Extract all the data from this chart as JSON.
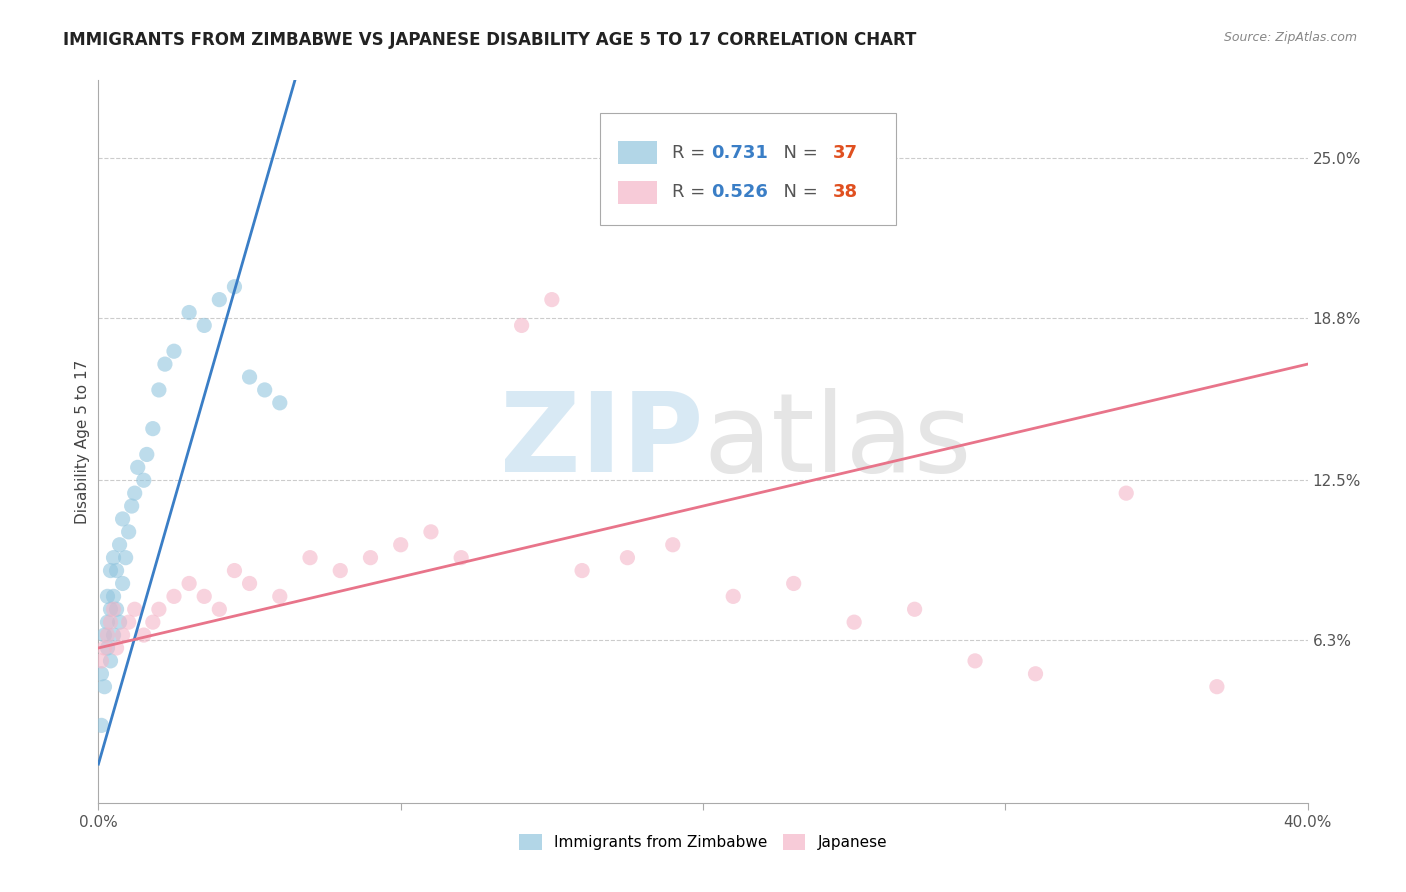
{
  "title": "IMMIGRANTS FROM ZIMBABWE VS JAPANESE DISABILITY AGE 5 TO 17 CORRELATION CHART",
  "source_text": "Source: ZipAtlas.com",
  "ylabel": "Disability Age 5 to 17",
  "xlim": [
    0.0,
    0.4
  ],
  "ylim": [
    0.0,
    0.28
  ],
  "xticks": [
    0.0,
    0.1,
    0.2,
    0.3,
    0.4
  ],
  "xticklabels": [
    "0.0%",
    "",
    "",
    "",
    "40.0%"
  ],
  "yticks_right": [
    0.063,
    0.125,
    0.188,
    0.25
  ],
  "yticklabels_right": [
    "6.3%",
    "12.5%",
    "18.8%",
    "25.0%"
  ],
  "legend_entry1_R": "0.731",
  "legend_entry1_N": "37",
  "legend_entry2_R": "0.526",
  "legend_entry2_N": "38",
  "blue_color": "#92c5de",
  "pink_color": "#f4b6c8",
  "blue_line_color": "#3a7ec6",
  "pink_line_color": "#e8748a",
  "legend_blue_color": "#92c5de",
  "legend_pink_color": "#f4b6c8",
  "label1": "Immigrants from Zimbabwe",
  "label2": "Japanese",
  "watermark_zip_color": "#c8e0f0",
  "watermark_atlas_color": "#d0d0d0",
  "blue_scatter_x": [
    0.001,
    0.001,
    0.002,
    0.002,
    0.003,
    0.003,
    0.003,
    0.004,
    0.004,
    0.004,
    0.005,
    0.005,
    0.005,
    0.006,
    0.006,
    0.007,
    0.007,
    0.008,
    0.008,
    0.009,
    0.01,
    0.011,
    0.012,
    0.013,
    0.015,
    0.016,
    0.018,
    0.02,
    0.022,
    0.025,
    0.03,
    0.035,
    0.04,
    0.045,
    0.05,
    0.055,
    0.06
  ],
  "blue_scatter_y": [
    0.03,
    0.05,
    0.045,
    0.065,
    0.06,
    0.07,
    0.08,
    0.055,
    0.075,
    0.09,
    0.065,
    0.08,
    0.095,
    0.075,
    0.09,
    0.07,
    0.1,
    0.085,
    0.11,
    0.095,
    0.105,
    0.115,
    0.12,
    0.13,
    0.125,
    0.135,
    0.145,
    0.16,
    0.17,
    0.175,
    0.19,
    0.185,
    0.195,
    0.2,
    0.165,
    0.16,
    0.155
  ],
  "pink_scatter_x": [
    0.001,
    0.002,
    0.003,
    0.004,
    0.005,
    0.006,
    0.008,
    0.01,
    0.012,
    0.015,
    0.018,
    0.02,
    0.025,
    0.03,
    0.035,
    0.04,
    0.045,
    0.05,
    0.06,
    0.07,
    0.08,
    0.09,
    0.1,
    0.11,
    0.12,
    0.14,
    0.15,
    0.16,
    0.175,
    0.19,
    0.21,
    0.23,
    0.25,
    0.27,
    0.29,
    0.31,
    0.34,
    0.37
  ],
  "pink_scatter_y": [
    0.055,
    0.06,
    0.065,
    0.07,
    0.075,
    0.06,
    0.065,
    0.07,
    0.075,
    0.065,
    0.07,
    0.075,
    0.08,
    0.085,
    0.08,
    0.075,
    0.09,
    0.085,
    0.08,
    0.095,
    0.09,
    0.095,
    0.1,
    0.105,
    0.095,
    0.185,
    0.195,
    0.09,
    0.095,
    0.1,
    0.08,
    0.085,
    0.07,
    0.075,
    0.055,
    0.05,
    0.12,
    0.045
  ],
  "blue_line_x": [
    0.0,
    0.065
  ],
  "blue_line_y": [
    0.015,
    0.28
  ],
  "pink_line_x": [
    0.0,
    0.4
  ],
  "pink_line_y": [
    0.06,
    0.17
  ],
  "title_fontsize": 12,
  "axis_label_fontsize": 11,
  "tick_fontsize": 11,
  "legend_fontsize": 13
}
